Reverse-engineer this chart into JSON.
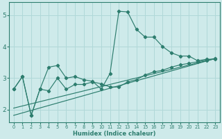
{
  "xlabel": "Humidex (Indice chaleur)",
  "xlim": [
    -0.5,
    23.5
  ],
  "ylim": [
    1.6,
    5.4
  ],
  "yticks": [
    2,
    3,
    4,
    5
  ],
  "xticks": [
    0,
    1,
    2,
    3,
    4,
    5,
    6,
    7,
    8,
    9,
    10,
    11,
    12,
    13,
    14,
    15,
    16,
    17,
    18,
    19,
    20,
    21,
    22,
    23
  ],
  "bg_color": "#ceeaea",
  "line_color": "#2d7d6e",
  "grid_color": "#b0d8d8",
  "line1_x": [
    0,
    1,
    2,
    3,
    4,
    5,
    6,
    7,
    8,
    9,
    10,
    11,
    12,
    13,
    14,
    15,
    16,
    17,
    18,
    19,
    20,
    21,
    22,
    23
  ],
  "line1_y": [
    2.65,
    3.05,
    1.82,
    2.65,
    3.35,
    3.4,
    3.0,
    3.05,
    2.95,
    2.9,
    2.65,
    3.15,
    5.12,
    5.1,
    4.55,
    4.3,
    4.3,
    4.0,
    3.8,
    3.7,
    3.7,
    3.55,
    3.6,
    3.6
  ],
  "line2_x": [
    0,
    1,
    2,
    3,
    4,
    5,
    6,
    7,
    8,
    9,
    10,
    11,
    12,
    13,
    14,
    15,
    16,
    17,
    18,
    19,
    20,
    21,
    22,
    23
  ],
  "line2_y": [
    2.65,
    3.05,
    1.82,
    2.65,
    2.6,
    3.0,
    2.65,
    2.8,
    2.8,
    2.88,
    2.82,
    2.72,
    2.72,
    2.88,
    2.95,
    3.1,
    3.2,
    3.25,
    3.35,
    3.42,
    3.47,
    3.52,
    3.57,
    3.62
  ],
  "line3_x": [
    0,
    23
  ],
  "line3_y": [
    1.82,
    3.62
  ],
  "line4_x": [
    0,
    23
  ],
  "line4_y": [
    2.05,
    3.62
  ]
}
